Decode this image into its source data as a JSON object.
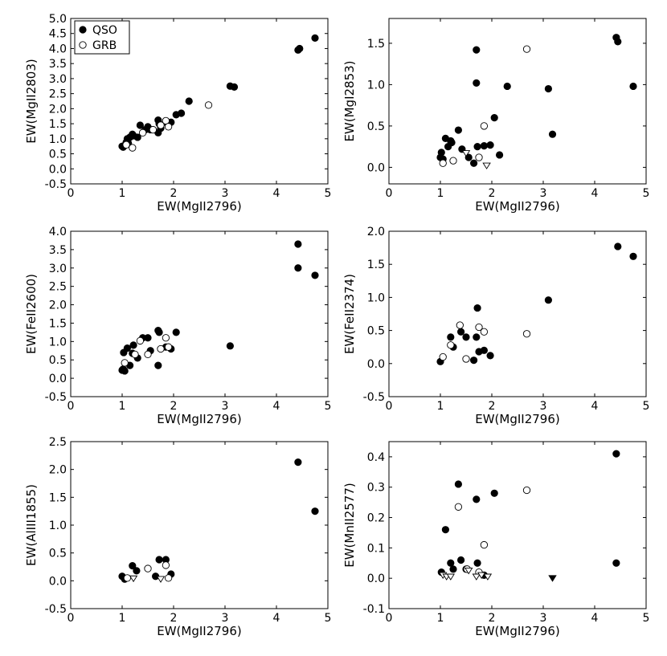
{
  "legend": {
    "position": "upper-left",
    "entries": [
      {
        "label": "QSO",
        "marker": "filled-circle"
      },
      {
        "label": "GRB",
        "marker": "open-circle"
      }
    ]
  },
  "colors": {
    "marker": "#000000",
    "background": "#ffffff",
    "axes": "#000000"
  },
  "chart_data": [
    {
      "type": "scatter",
      "xlabel": "EW(MgII2796)",
      "ylabel": "EW(MgII2803)",
      "xlim": [
        0,
        5
      ],
      "ylim": [
        -0.5,
        5.0
      ],
      "xticks": [
        "0",
        "1",
        "2",
        "3",
        "4",
        "5"
      ],
      "yticks": [
        "-0.5",
        "0.0",
        "0.5",
        "1.0",
        "1.5",
        "2.0",
        "2.5",
        "3.0",
        "3.5",
        "4.0",
        "4.5",
        "5.0"
      ],
      "ytick_values": [
        -0.5,
        0.0,
        0.5,
        1.0,
        1.5,
        2.0,
        2.5,
        3.0,
        3.5,
        4.0,
        4.5,
        5.0
      ],
      "series": [
        {
          "name": "QSO",
          "marker": "filled-circle",
          "points": [
            [
              1.0,
              0.75
            ],
            [
              1.02,
              0.72
            ],
            [
              1.05,
              0.78
            ],
            [
              1.08,
              0.88
            ],
            [
              1.1,
              1.0
            ],
            [
              1.12,
              0.85
            ],
            [
              1.15,
              1.05
            ],
            [
              1.2,
              1.15
            ],
            [
              1.22,
              1.1
            ],
            [
              1.3,
              1.05
            ],
            [
              1.35,
              1.45
            ],
            [
              1.45,
              1.3
            ],
            [
              1.5,
              1.4
            ],
            [
              1.55,
              1.3
            ],
            [
              1.7,
              1.62
            ],
            [
              1.72,
              1.5
            ],
            [
              1.75,
              1.35
            ],
            [
              1.7,
              1.2
            ],
            [
              1.85,
              1.55
            ],
            [
              1.95,
              1.55
            ],
            [
              2.05,
              1.8
            ],
            [
              2.15,
              1.85
            ],
            [
              2.3,
              2.25
            ],
            [
              3.1,
              2.75
            ],
            [
              3.18,
              2.72
            ],
            [
              4.42,
              3.95
            ],
            [
              4.45,
              4.0
            ],
            [
              4.75,
              4.35
            ]
          ]
        },
        {
          "name": "GRB",
          "marker": "open-circle",
          "points": [
            [
              1.08,
              0.8
            ],
            [
              1.2,
              0.7
            ],
            [
              1.4,
              1.2
            ],
            [
              1.6,
              1.3
            ],
            [
              1.75,
              1.45
            ],
            [
              1.85,
              1.6
            ],
            [
              1.9,
              1.4
            ],
            [
              2.68,
              2.12
            ]
          ]
        }
      ]
    },
    {
      "type": "scatter",
      "xlabel": "EW(MgII2796)",
      "ylabel": "EW(MgI2853)",
      "xlim": [
        0,
        5
      ],
      "ylim": [
        -0.2,
        1.8
      ],
      "xticks": [
        "0",
        "1",
        "2",
        "3",
        "4",
        "5"
      ],
      "yticks": [
        "0.0",
        "0.5",
        "1.0",
        "1.5"
      ],
      "ytick_values": [
        0.0,
        0.5,
        1.0,
        1.5
      ],
      "series": [
        {
          "name": "QSO",
          "marker": "filled-circle",
          "points": [
            [
              1.0,
              0.12
            ],
            [
              1.02,
              0.18
            ],
            [
              1.05,
              0.1
            ],
            [
              1.1,
              0.35
            ],
            [
              1.15,
              0.25
            ],
            [
              1.2,
              0.32
            ],
            [
              1.22,
              0.3
            ],
            [
              1.35,
              0.45
            ],
            [
              1.42,
              0.22
            ],
            [
              1.55,
              0.12
            ],
            [
              1.65,
              0.05
            ],
            [
              1.72,
              0.25
            ],
            [
              1.7,
              1.42
            ],
            [
              1.7,
              1.02
            ],
            [
              1.85,
              0.26
            ],
            [
              1.97,
              0.27
            ],
            [
              2.05,
              0.6
            ],
            [
              2.15,
              0.15
            ],
            [
              2.3,
              0.98
            ],
            [
              3.1,
              0.95
            ],
            [
              3.18,
              0.4
            ],
            [
              4.42,
              1.57
            ],
            [
              4.45,
              1.52
            ],
            [
              4.75,
              0.98
            ]
          ]
        },
        {
          "name": "GRB",
          "marker": "open-circle",
          "points": [
            [
              1.05,
              0.05
            ],
            [
              1.25,
              0.08
            ],
            [
              1.75,
              0.12
            ],
            [
              1.85,
              0.5
            ],
            [
              2.68,
              1.43
            ]
          ]
        },
        {
          "name": "GRB upper limit",
          "marker": "open-triangle-down",
          "points": [
            [
              1.5,
              0.17
            ],
            [
              1.9,
              0.02
            ]
          ]
        }
      ]
    },
    {
      "type": "scatter",
      "xlabel": "EW(MgII2796)",
      "ylabel": "EW(FeII2600)",
      "xlim": [
        0,
        5
      ],
      "ylim": [
        -0.5,
        4.0
      ],
      "xticks": [
        "0",
        "1",
        "2",
        "3",
        "4",
        "5"
      ],
      "yticks": [
        "-0.5",
        "0.0",
        "0.5",
        "1.0",
        "1.5",
        "2.0",
        "2.5",
        "3.0",
        "3.5",
        "4.0"
      ],
      "ytick_values": [
        -0.5,
        0.0,
        0.5,
        1.0,
        1.5,
        2.0,
        2.5,
        3.0,
        3.5,
        4.0
      ],
      "series": [
        {
          "name": "QSO",
          "marker": "filled-circle",
          "points": [
            [
              1.0,
              0.22
            ],
            [
              1.02,
              0.25
            ],
            [
              1.03,
              0.7
            ],
            [
              1.05,
              0.2
            ],
            [
              1.1,
              0.82
            ],
            [
              1.15,
              0.35
            ],
            [
              1.2,
              0.68
            ],
            [
              1.22,
              0.9
            ],
            [
              1.3,
              0.55
            ],
            [
              1.4,
              1.1
            ],
            [
              1.5,
              1.1
            ],
            [
              1.55,
              0.75
            ],
            [
              1.7,
              1.3
            ],
            [
              1.72,
              1.25
            ],
            [
              1.7,
              0.35
            ],
            [
              1.85,
              0.85
            ],
            [
              1.95,
              0.8
            ],
            [
              2.05,
              1.25
            ],
            [
              3.1,
              0.88
            ],
            [
              4.42,
              3.65
            ],
            [
              4.42,
              3.0
            ],
            [
              4.75,
              2.8
            ]
          ]
        },
        {
          "name": "GRB",
          "marker": "open-circle",
          "points": [
            [
              1.05,
              0.42
            ],
            [
              1.25,
              0.65
            ],
            [
              1.35,
              1.02
            ],
            [
              1.5,
              0.65
            ],
            [
              1.75,
              0.8
            ],
            [
              1.85,
              1.1
            ],
            [
              1.9,
              0.85
            ]
          ]
        }
      ]
    },
    {
      "type": "scatter",
      "xlabel": "EW(MgII2796)",
      "ylabel": "EW(FeII2374)",
      "xlim": [
        0,
        5
      ],
      "ylim": [
        -0.5,
        2.0
      ],
      "xticks": [
        "0",
        "1",
        "2",
        "3",
        "4",
        "5"
      ],
      "yticks": [
        "-0.5",
        "0.0",
        "0.5",
        "1.0",
        "1.5",
        "2.0"
      ],
      "ytick_values": [
        -0.5,
        0.0,
        0.5,
        1.0,
        1.5,
        2.0
      ],
      "series": [
        {
          "name": "QSO",
          "marker": "filled-circle",
          "points": [
            [
              1.0,
              0.03
            ],
            [
              1.2,
              0.4
            ],
            [
              1.25,
              0.25
            ],
            [
              1.4,
              0.48
            ],
            [
              1.5,
              0.4
            ],
            [
              1.65,
              0.05
            ],
            [
              1.7,
              0.4
            ],
            [
              1.72,
              0.84
            ],
            [
              1.75,
              0.18
            ],
            [
              1.85,
              0.2
            ],
            [
              1.97,
              0.12
            ],
            [
              3.1,
              0.96
            ],
            [
              4.45,
              1.77
            ],
            [
              4.75,
              1.62
            ]
          ]
        },
        {
          "name": "GRB",
          "marker": "open-circle",
          "points": [
            [
              1.05,
              0.1
            ],
            [
              1.2,
              0.28
            ],
            [
              1.38,
              0.58
            ],
            [
              1.5,
              0.07
            ],
            [
              1.75,
              0.55
            ],
            [
              1.85,
              0.48
            ],
            [
              2.68,
              0.45
            ]
          ]
        }
      ]
    },
    {
      "type": "scatter",
      "xlabel": "EW(MgII2796)",
      "ylabel": "EW(AlIII1855)",
      "xlim": [
        0,
        5
      ],
      "ylim": [
        -0.5,
        2.5
      ],
      "xticks": [
        "0",
        "1",
        "2",
        "3",
        "4",
        "5"
      ],
      "yticks": [
        "-0.5",
        "0.0",
        "0.5",
        "1.0",
        "1.5",
        "2.0",
        "2.5"
      ],
      "ytick_values": [
        -0.5,
        0.0,
        0.5,
        1.0,
        1.5,
        2.0,
        2.5
      ],
      "series": [
        {
          "name": "QSO",
          "marker": "filled-circle",
          "points": [
            [
              1.0,
              0.08
            ],
            [
              1.05,
              0.03
            ],
            [
              1.2,
              0.27
            ],
            [
              1.28,
              0.18
            ],
            [
              1.65,
              0.08
            ],
            [
              1.72,
              0.38
            ],
            [
              1.85,
              0.38
            ],
            [
              1.95,
              0.12
            ],
            [
              4.42,
              2.13
            ],
            [
              4.75,
              1.25
            ]
          ]
        },
        {
          "name": "GRB",
          "marker": "open-circle",
          "points": [
            [
              1.1,
              0.05
            ],
            [
              1.5,
              0.22
            ],
            [
              1.85,
              0.28
            ],
            [
              1.9,
              0.05
            ]
          ]
        },
        {
          "name": "GRB upper limit",
          "marker": "open-triangle-down",
          "points": [
            [
              1.22,
              0.04
            ],
            [
              1.75,
              0.03
            ]
          ]
        }
      ]
    },
    {
      "type": "scatter",
      "xlabel": "EW(MgII2796)",
      "ylabel": "EW(MnII2577)",
      "xlim": [
        0,
        5
      ],
      "ylim": [
        -0.1,
        0.45
      ],
      "xticks": [
        "0",
        "1",
        "2",
        "3",
        "4",
        "5"
      ],
      "yticks": [
        "-0.1",
        "0.0",
        "0.1",
        "0.2",
        "0.3",
        "0.4"
      ],
      "ytick_values": [
        -0.1,
        0.0,
        0.1,
        0.2,
        0.3,
        0.4
      ],
      "series": [
        {
          "name": "QSO",
          "marker": "filled-circle",
          "points": [
            [
              1.02,
              0.02
            ],
            [
              1.1,
              0.16
            ],
            [
              1.2,
              0.05
            ],
            [
              1.25,
              0.03
            ],
            [
              1.35,
              0.31
            ],
            [
              1.4,
              0.06
            ],
            [
              1.5,
              0.03
            ],
            [
              1.7,
              0.26
            ],
            [
              1.72,
              0.05
            ],
            [
              1.85,
              0.01
            ],
            [
              2.05,
              0.28
            ],
            [
              4.42,
              0.41
            ],
            [
              4.42,
              0.05
            ]
          ]
        },
        {
          "name": "GRB",
          "marker": "open-circle",
          "points": [
            [
              1.35,
              0.235
            ],
            [
              1.52,
              0.03
            ],
            [
              1.85,
              0.11
            ],
            [
              2.68,
              0.29
            ],
            [
              1.75,
              0.02
            ]
          ]
        },
        {
          "name": "GRB upper limit",
          "marker": "open-triangle-down",
          "points": [
            [
              1.05,
              0.01
            ],
            [
              1.12,
              0.005
            ],
            [
              1.2,
              0.005
            ],
            [
              1.55,
              0.025
            ],
            [
              1.7,
              0.005
            ],
            [
              1.8,
              0.01
            ],
            [
              1.92,
              0.005
            ]
          ]
        },
        {
          "name": "QSO upper limit",
          "marker": "filled-triangle-down",
          "points": [
            [
              3.18,
              0.0
            ]
          ]
        }
      ]
    }
  ]
}
